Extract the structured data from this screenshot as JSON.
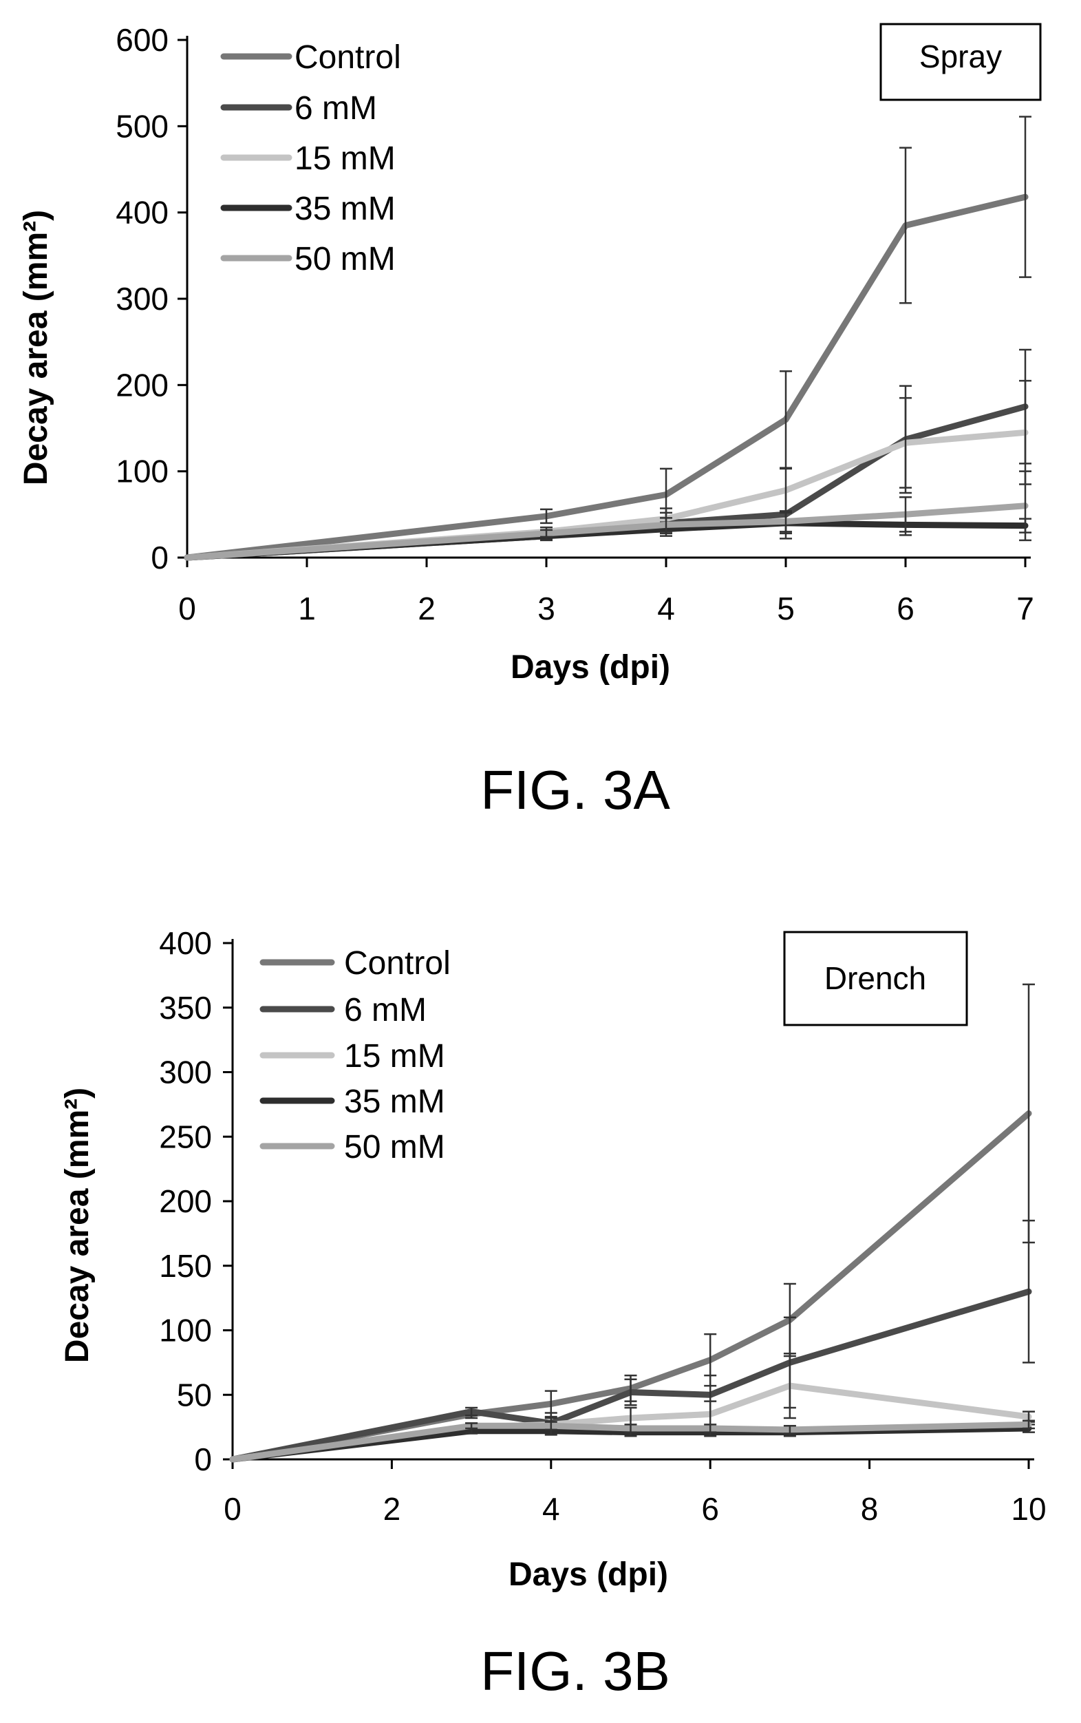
{
  "figure": {
    "colors": {
      "axis": "#000000",
      "control": "#777777",
      "mM6": "#4a4a4a",
      "mM15": "#c4c4c4",
      "mM35": "#2e2e2e",
      "mM50": "#a4a4a4",
      "error_bar": "#333333"
    }
  },
  "panels": [
    {
      "caption": "FIG. 3A",
      "box_label": "Spray",
      "chart_data": {
        "type": "line",
        "xlabel": "Days (dpi)",
        "ylabel": "Decay area (mm²)",
        "xlim": [
          0,
          7
        ],
        "ylim": [
          0,
          600
        ],
        "x_ticks": [
          0,
          1,
          2,
          3,
          4,
          5,
          6,
          7
        ],
        "y_ticks": [
          0,
          100,
          200,
          300,
          400,
          500,
          600
        ],
        "legend_position": "top-left",
        "x": [
          0,
          3,
          4,
          5,
          6,
          7
        ],
        "series": [
          {
            "name": "Control",
            "color_key": "control",
            "values": [
              0,
              48,
              73,
              160,
              385,
              418
            ],
            "errors": [
              0,
              8,
              30,
              56,
              90,
              93
            ]
          },
          {
            "name": "6 mM",
            "color_key": "mM6",
            "values": [
              0,
              25,
              40,
              50,
              137,
              175
            ],
            "errors": [
              0,
              5,
              12,
              28,
              62,
              66
            ]
          },
          {
            "name": "15 mM",
            "color_key": "mM15",
            "values": [
              0,
              30,
              45,
              78,
              133,
              145
            ],
            "errors": [
              0,
              5,
              12,
              25,
              52,
              60
            ]
          },
          {
            "name": "35 mM",
            "color_key": "mM35",
            "values": [
              0,
              25,
              33,
              40,
              38,
              37
            ],
            "errors": [
              0,
              4,
              8,
              12,
              12,
              8
            ]
          },
          {
            "name": "50 mM",
            "color_key": "mM50",
            "values": [
              0,
              28,
              38,
              42,
              50,
              60
            ],
            "errors": [
              0,
              4,
              8,
              12,
              20,
              40
            ]
          }
        ]
      }
    },
    {
      "caption": "FIG. 3B",
      "box_label": "Drench",
      "chart_data": {
        "type": "line",
        "xlabel": "Days (dpi)",
        "ylabel": "Decay area (mm²)",
        "xlim": [
          0,
          10
        ],
        "ylim": [
          0,
          400
        ],
        "x_ticks": [
          0,
          2,
          4,
          6,
          8,
          10
        ],
        "y_ticks": [
          0,
          50,
          100,
          150,
          200,
          250,
          300,
          350,
          400
        ],
        "legend_position": "top-left",
        "x": [
          0,
          3,
          4,
          5,
          6,
          7,
          10
        ],
        "series": [
          {
            "name": "Control",
            "color_key": "control",
            "values": [
              0,
              35,
              43,
              55,
              77,
              108,
              268
            ],
            "errors": [
              0,
              3,
              10,
              10,
              20,
              28,
              100
            ]
          },
          {
            "name": "6 mM",
            "color_key": "mM6",
            "values": [
              0,
              37,
              28,
              52,
              50,
              75,
              130
            ],
            "errors": [
              0,
              3,
              8,
              10,
              15,
              35,
              55
            ]
          },
          {
            "name": "15 mM",
            "color_key": "mM15",
            "values": [
              0,
              25,
              27,
              32,
              35,
              57,
              33
            ],
            "errors": [
              0,
              3,
              5,
              8,
              10,
              25,
              4
            ]
          },
          {
            "name": "35 mM",
            "color_key": "mM35",
            "values": [
              0,
              22,
              22,
              21,
              21,
              21,
              24
            ],
            "errors": [
              0,
              2,
              3,
              3,
              3,
              3,
              3
            ]
          },
          {
            "name": "50 mM",
            "color_key": "mM50",
            "values": [
              0,
              26,
              26,
              24,
              24,
              23,
              27
            ],
            "errors": [
              0,
              2,
              3,
              3,
              3,
              3,
              3
            ]
          }
        ]
      }
    }
  ]
}
